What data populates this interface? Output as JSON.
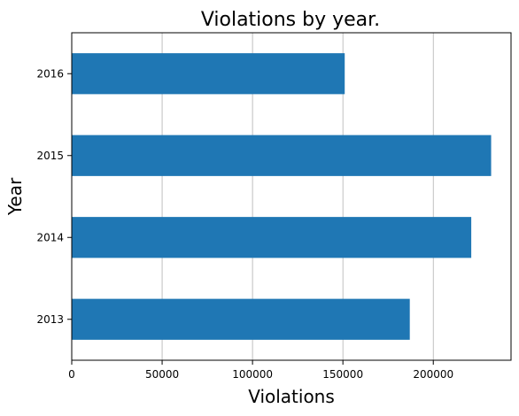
{
  "chart_data": {
    "type": "bar",
    "orientation": "horizontal",
    "title": "Violations by year.",
    "xlabel": "Violations",
    "ylabel": "Year",
    "categories": [
      "2013",
      "2014",
      "2015",
      "2016"
    ],
    "values": [
      187000,
      221000,
      232000,
      151000
    ],
    "xlim": [
      0,
      243000
    ],
    "xticks": [
      0,
      50000,
      100000,
      150000,
      200000
    ],
    "xtick_labels": [
      "0",
      "50000",
      "100000",
      "150000",
      "200000"
    ],
    "grid": "x-axis vertical lines",
    "legend": "none",
    "bar_color": "#1f77b4",
    "grid_color": "#b0b0b0"
  }
}
